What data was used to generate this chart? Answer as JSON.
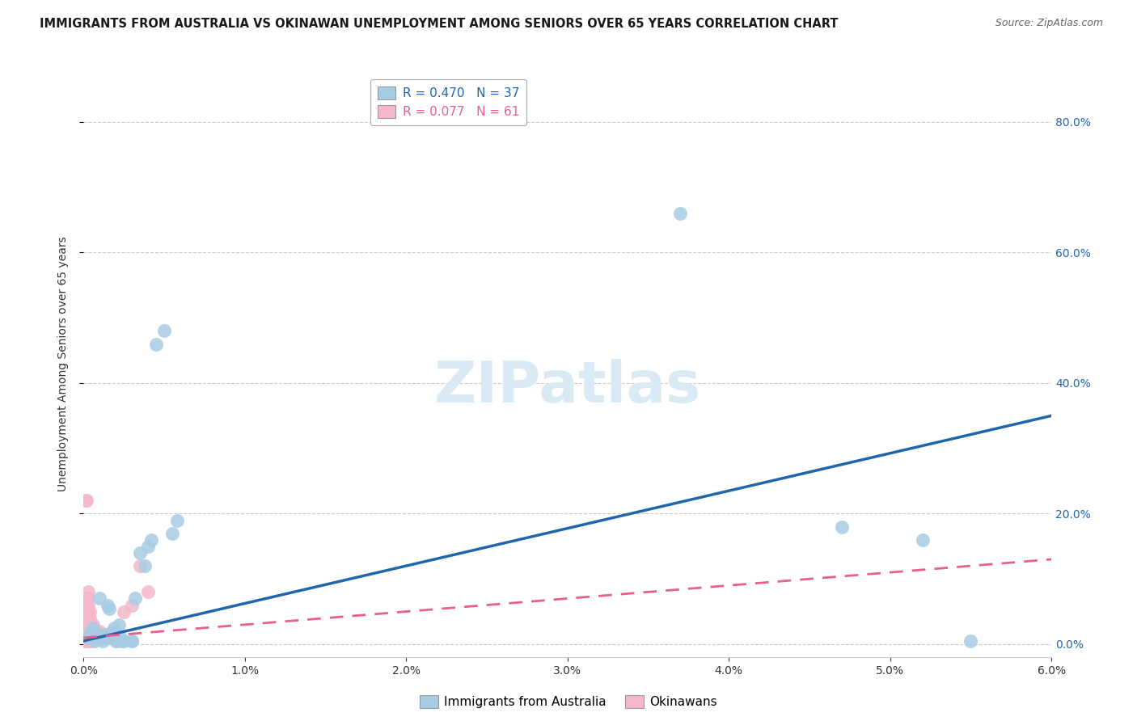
{
  "title": "IMMIGRANTS FROM AUSTRALIA VS OKINAWAN UNEMPLOYMENT AMONG SENIORS OVER 65 YEARS CORRELATION CHART",
  "source": "Source: ZipAtlas.com",
  "xlabel_ticks": [
    "0.0%",
    "1.0%",
    "2.0%",
    "3.0%",
    "4.0%",
    "5.0%",
    "6.0%"
  ],
  "ylabel_right_ticks": [
    "0.0%",
    "20.0%",
    "40.0%",
    "60.0%",
    "80.0%"
  ],
  "ylabel": "Unemployment Among Seniors over 65 years",
  "xlim": [
    0.0,
    0.06
  ],
  "ylim": [
    -0.02,
    0.88
  ],
  "watermark": "ZIPatlas",
  "legend_R_blue": "R = 0.470",
  "legend_N_blue": "N = 37",
  "legend_R_pink": "R = 0.077",
  "legend_N_pink": "N = 61",
  "blue_color": "#a8cce4",
  "pink_color": "#f4b8c8",
  "blue_line_color": "#2166ac",
  "pink_line_color": "#e8608a",
  "blue_scatter": [
    [
      0.0003,
      0.01
    ],
    [
      0.0004,
      0.015
    ],
    [
      0.0005,
      0.02
    ],
    [
      0.0006,
      0.025
    ],
    [
      0.0007,
      0.005
    ],
    [
      0.0008,
      0.01
    ],
    [
      0.001,
      0.015
    ],
    [
      0.001,
      0.07
    ],
    [
      0.0012,
      0.005
    ],
    [
      0.0013,
      0.01
    ],
    [
      0.0014,
      0.015
    ],
    [
      0.0015,
      0.06
    ],
    [
      0.0016,
      0.055
    ],
    [
      0.0017,
      0.01
    ],
    [
      0.0018,
      0.02
    ],
    [
      0.0019,
      0.025
    ],
    [
      0.002,
      0.005
    ],
    [
      0.0021,
      0.005
    ],
    [
      0.0022,
      0.03
    ],
    [
      0.0023,
      0.01
    ],
    [
      0.0024,
      0.005
    ],
    [
      0.0025,
      0.005
    ],
    [
      0.003,
      0.005
    ],
    [
      0.003,
      0.005
    ],
    [
      0.0032,
      0.07
    ],
    [
      0.0035,
      0.14
    ],
    [
      0.0038,
      0.12
    ],
    [
      0.004,
      0.15
    ],
    [
      0.0042,
      0.16
    ],
    [
      0.0045,
      0.46
    ],
    [
      0.005,
      0.48
    ],
    [
      0.0055,
      0.17
    ],
    [
      0.0058,
      0.19
    ],
    [
      0.037,
      0.66
    ],
    [
      0.047,
      0.18
    ],
    [
      0.052,
      0.16
    ],
    [
      0.055,
      0.005
    ]
  ],
  "pink_scatter": [
    [
      5e-05,
      0.01
    ],
    [
      0.0001,
      0.005
    ],
    [
      0.0001,
      0.01
    ],
    [
      0.0001,
      0.015
    ],
    [
      0.0001,
      0.02
    ],
    [
      0.0001,
      0.03
    ],
    [
      0.0001,
      0.04
    ],
    [
      0.0001,
      0.05
    ],
    [
      0.0001,
      0.06
    ],
    [
      0.00015,
      0.005
    ],
    [
      0.0002,
      0.005
    ],
    [
      0.0002,
      0.01
    ],
    [
      0.0002,
      0.015
    ],
    [
      0.0002,
      0.02
    ],
    [
      0.0002,
      0.025
    ],
    [
      0.0002,
      0.03
    ],
    [
      0.0002,
      0.04
    ],
    [
      0.0002,
      0.05
    ],
    [
      0.0002,
      0.06
    ],
    [
      0.0002,
      0.07
    ],
    [
      0.0003,
      0.005
    ],
    [
      0.0003,
      0.01
    ],
    [
      0.0003,
      0.015
    ],
    [
      0.0003,
      0.02
    ],
    [
      0.0003,
      0.025
    ],
    [
      0.0003,
      0.03
    ],
    [
      0.0003,
      0.04
    ],
    [
      0.0003,
      0.05
    ],
    [
      0.0003,
      0.06
    ],
    [
      0.0003,
      0.07
    ],
    [
      0.0003,
      0.08
    ],
    [
      0.0004,
      0.005
    ],
    [
      0.0004,
      0.01
    ],
    [
      0.0004,
      0.015
    ],
    [
      0.0004,
      0.02
    ],
    [
      0.0004,
      0.03
    ],
    [
      0.0004,
      0.04
    ],
    [
      0.0004,
      0.05
    ],
    [
      0.0005,
      0.005
    ],
    [
      0.0005,
      0.01
    ],
    [
      0.0005,
      0.02
    ],
    [
      0.0005,
      0.03
    ],
    [
      0.0006,
      0.01
    ],
    [
      0.0006,
      0.02
    ],
    [
      0.0006,
      0.03
    ],
    [
      0.0007,
      0.01
    ],
    [
      0.0007,
      0.02
    ],
    [
      0.0008,
      0.01
    ],
    [
      0.0008,
      0.02
    ],
    [
      0.001,
      0.01
    ],
    [
      0.001,
      0.02
    ],
    [
      0.0012,
      0.01
    ],
    [
      0.0014,
      0.01
    ],
    [
      0.0016,
      0.015
    ],
    [
      0.002,
      0.01
    ],
    [
      0.00015,
      0.22
    ],
    [
      0.0002,
      0.22
    ],
    [
      0.0025,
      0.05
    ],
    [
      0.003,
      0.06
    ],
    [
      0.0035,
      0.12
    ],
    [
      0.004,
      0.08
    ]
  ],
  "blue_line_x": [
    0.0,
    0.06
  ],
  "blue_line_y": [
    0.005,
    0.35
  ],
  "pink_line_x": [
    0.0,
    0.06
  ],
  "pink_line_y": [
    0.01,
    0.13
  ],
  "grid_color": "#cccccc",
  "background_color": "#ffffff",
  "title_fontsize": 10.5,
  "source_fontsize": 9,
  "ylabel_fontsize": 10,
  "tick_fontsize": 10,
  "legend_fontsize": 11,
  "watermark_fontsize": 52,
  "watermark_color": "#daeaf5",
  "right_tick_color": "#2166ac",
  "yticks": [
    0.0,
    0.2,
    0.4,
    0.6,
    0.8
  ]
}
